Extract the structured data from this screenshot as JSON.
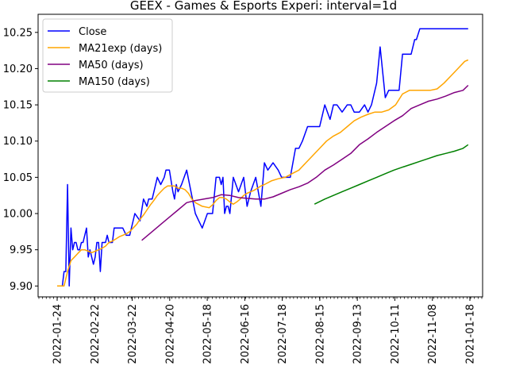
{
  "chart_data": {
    "type": "line",
    "title": "GEEX - Games & Esports Experi: interval=1d",
    "xlabel": "",
    "ylabel": "",
    "grid": false,
    "legend_position": "top-left",
    "x_ticks": [
      "2022-01-24",
      "2022-02-22",
      "2022-03-22",
      "2022-04-20",
      "2022-05-18",
      "2022-06-16",
      "2022-07-18",
      "2022-08-15",
      "2022-09-13",
      "2022-10-11",
      "2022-11-08",
      "2021-01-18"
    ],
    "y_ticks": [
      "9.90",
      "9.95",
      "10.00",
      "10.05",
      "10.10",
      "10.15",
      "10.20",
      "10.25"
    ],
    "ylim": [
      9.885,
      10.275
    ],
    "xlim": [
      0,
      239
    ],
    "series": [
      {
        "name": "Close",
        "color": "#0000ff",
        "x": [
          0,
          3,
          4,
          5,
          6,
          7,
          8,
          9,
          10,
          11,
          12,
          13,
          14,
          15,
          17,
          18,
          19,
          20,
          21,
          22,
          23,
          24,
          25,
          26,
          27,
          28,
          29,
          30,
          32,
          33,
          35,
          38,
          40,
          42,
          45,
          48,
          50,
          52,
          53,
          55,
          58,
          60,
          62,
          63,
          65,
          67,
          68,
          69,
          70,
          72,
          75,
          80,
          82,
          84,
          87,
          88,
          90,
          92,
          94,
          95,
          96,
          97,
          98,
          99,
          100,
          102,
          105,
          108,
          110,
          112,
          115,
          118,
          120,
          122,
          125,
          128,
          130,
          132,
          135,
          138,
          140,
          142,
          145,
          148,
          150,
          152,
          155,
          158,
          160,
          162,
          165,
          168,
          170,
          172,
          175,
          178,
          180,
          182,
          185,
          187,
          190,
          192,
          195,
          198,
          200,
          202,
          205,
          207,
          208,
          210,
          212,
          213,
          215,
          217,
          218,
          220,
          222,
          225,
          228,
          230,
          232,
          234,
          236,
          238
        ],
        "y": [
          9.9,
          9.9,
          9.92,
          9.92,
          10.04,
          9.9,
          9.98,
          9.95,
          9.96,
          9.96,
          9.95,
          9.95,
          9.96,
          9.96,
          9.98,
          9.94,
          9.95,
          9.94,
          9.93,
          9.94,
          9.96,
          9.96,
          9.92,
          9.96,
          9.96,
          9.96,
          9.97,
          9.96,
          9.96,
          9.98,
          9.98,
          9.98,
          9.97,
          9.97,
          10.0,
          9.99,
          10.02,
          10.01,
          10.02,
          10.02,
          10.05,
          10.04,
          10.05,
          10.06,
          10.06,
          10.03,
          10.02,
          10.04,
          10.03,
          10.04,
          10.06,
          10.0,
          9.99,
          9.98,
          10.0,
          10.0,
          10.0,
          10.05,
          10.05,
          10.04,
          10.05,
          10.0,
          10.01,
          10.01,
          10.0,
          10.05,
          10.03,
          10.05,
          10.01,
          10.03,
          10.05,
          10.01,
          10.07,
          10.06,
          10.07,
          10.06,
          10.05,
          10.05,
          10.05,
          10.09,
          10.09,
          10.1,
          10.12,
          10.12,
          10.12,
          10.12,
          10.15,
          10.13,
          10.15,
          10.15,
          10.14,
          10.15,
          10.15,
          10.14,
          10.14,
          10.15,
          10.14,
          10.15,
          10.18,
          10.23,
          10.16,
          10.17,
          10.17,
          10.17,
          10.22,
          10.22,
          10.22,
          10.24,
          10.24,
          10.255,
          10.255,
          10.255,
          10.255,
          10.255,
          10.255,
          10.255,
          10.255,
          10.255,
          10.255,
          10.255,
          10.255,
          10.255,
          10.255,
          10.255
        ]
      },
      {
        "name": "MA21exp (days)",
        "color": "#ffa500",
        "x": [
          0,
          4,
          6,
          8,
          10,
          12,
          14,
          16,
          18,
          20,
          22,
          24,
          26,
          28,
          30,
          32,
          34,
          36,
          38,
          40,
          42,
          44,
          46,
          48,
          50,
          52,
          54,
          56,
          58,
          60,
          62,
          64,
          66,
          68,
          70,
          72,
          74,
          76,
          78,
          80,
          84,
          88,
          90,
          92,
          94,
          96,
          98,
          100,
          102,
          104,
          106,
          108,
          110,
          112,
          114,
          116,
          118,
          120,
          124,
          128,
          132,
          136,
          140,
          144,
          148,
          152,
          156,
          160,
          164,
          168,
          172,
          176,
          180,
          184,
          188,
          192,
          196,
          200,
          204,
          208,
          212,
          216,
          220,
          224,
          228,
          232,
          236,
          238
        ],
        "y": [
          9.9,
          9.9,
          9.92,
          9.935,
          9.94,
          9.945,
          9.95,
          9.95,
          9.948,
          9.946,
          9.948,
          9.95,
          9.952,
          9.955,
          9.96,
          9.962,
          9.965,
          9.968,
          9.97,
          9.972,
          9.975,
          9.98,
          9.985,
          9.992,
          9.998,
          10.005,
          10.012,
          10.018,
          10.025,
          10.03,
          10.035,
          10.038,
          10.038,
          10.038,
          10.035,
          10.035,
          10.033,
          10.028,
          10.02,
          10.015,
          10.01,
          10.008,
          10.012,
          10.018,
          10.022,
          10.022,
          10.02,
          10.016,
          10.013,
          10.016,
          10.02,
          10.025,
          10.028,
          10.03,
          10.032,
          10.035,
          10.038,
          10.04,
          10.045,
          10.048,
          10.05,
          10.055,
          10.06,
          10.07,
          10.08,
          10.09,
          10.1,
          10.107,
          10.112,
          10.12,
          10.128,
          10.133,
          10.137,
          10.14,
          10.14,
          10.143,
          10.15,
          10.165,
          10.17,
          10.17,
          10.17,
          10.17,
          10.172,
          10.18,
          10.19,
          10.2,
          10.21,
          10.212
        ]
      },
      {
        "name": "MA50 (days)",
        "color": "#800080",
        "x": [
          49,
          55,
          60,
          65,
          70,
          75,
          80,
          85,
          90,
          95,
          100,
          105,
          110,
          115,
          120,
          125,
          130,
          135,
          140,
          145,
          150,
          155,
          160,
          165,
          170,
          175,
          180,
          185,
          190,
          195,
          200,
          205,
          210,
          215,
          220,
          225,
          230,
          235,
          238
        ],
        "y": [
          9.963,
          9.975,
          9.985,
          9.995,
          10.005,
          10.015,
          10.018,
          10.02,
          10.022,
          10.026,
          10.025,
          10.022,
          10.021,
          10.02,
          10.02,
          10.023,
          10.028,
          10.033,
          10.037,
          10.042,
          10.05,
          10.06,
          10.067,
          10.075,
          10.083,
          10.095,
          10.103,
          10.112,
          10.12,
          10.128,
          10.135,
          10.145,
          10.15,
          10.155,
          10.158,
          10.162,
          10.167,
          10.17,
          10.177
        ]
      },
      {
        "name": "MA150 (days)",
        "color": "#008000",
        "x": [
          149,
          155,
          160,
          165,
          170,
          175,
          180,
          185,
          190,
          195,
          200,
          205,
          210,
          215,
          220,
          225,
          230,
          235,
          238
        ],
        "y": [
          10.013,
          10.02,
          10.025,
          10.03,
          10.035,
          10.04,
          10.045,
          10.05,
          10.055,
          10.06,
          10.064,
          10.068,
          10.072,
          10.076,
          10.08,
          10.083,
          10.086,
          10.09,
          10.095
        ]
      }
    ]
  }
}
